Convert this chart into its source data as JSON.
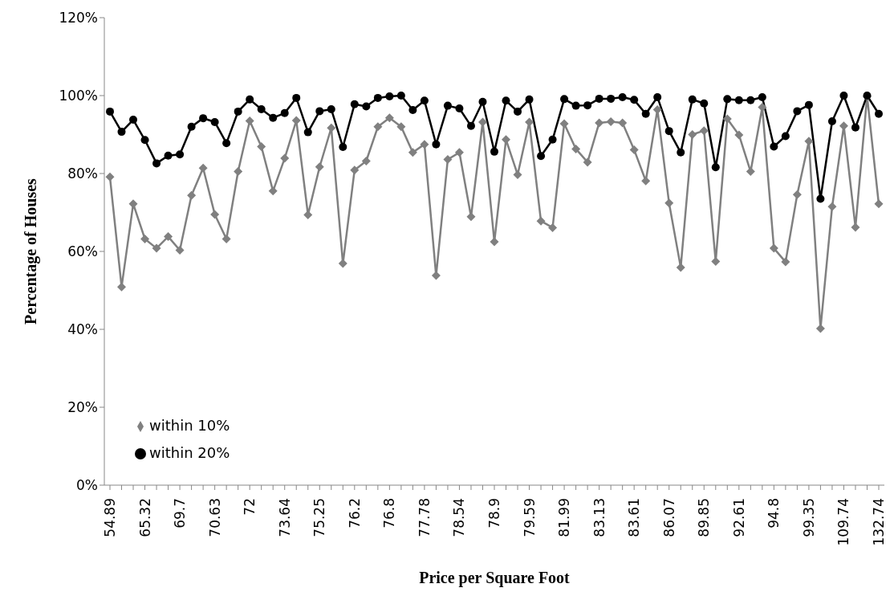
{
  "chart_data": {
    "type": "line",
    "xlabel": "Price per Square Foot",
    "ylabel": "Percentage of Houses",
    "categories": [
      "54.89",
      null,
      null,
      "65.32",
      null,
      null,
      "69.7",
      null,
      null,
      "70.63",
      null,
      null,
      "72",
      null,
      null,
      "73.64",
      null,
      null,
      "75.25",
      null,
      null,
      "76.2",
      null,
      null,
      "76.8",
      null,
      null,
      "77.78",
      null,
      null,
      "78.54",
      null,
      null,
      "78.9",
      null,
      null,
      "79.59",
      null,
      null,
      "81.99",
      null,
      null,
      "83.13",
      null,
      null,
      "83.61",
      null,
      null,
      "86.07",
      null,
      null,
      "89.85",
      null,
      null,
      "92.61",
      null,
      null,
      "94.8",
      null,
      null,
      "99.35",
      null,
      null,
      "109.74",
      null,
      null,
      "132.74"
    ],
    "series": [
      {
        "name": "within 10%",
        "color": "#808080",
        "marker": "diamond",
        "values": [
          79.1,
          50.9,
          72.2,
          63.2,
          60.8,
          63.8,
          60.3,
          74.4,
          81.4,
          69.5,
          63.2,
          80.5,
          93.5,
          86.9,
          75.5,
          83.9,
          93.6,
          69.4,
          81.7,
          91.7,
          56.9,
          80.9,
          83.2,
          92.0,
          94.3,
          92.0,
          85.4,
          87.5,
          53.8,
          83.6,
          85.4,
          68.9,
          93.2,
          62.5,
          88.7,
          79.7,
          93.2,
          67.8,
          66.1,
          92.8,
          86.3,
          82.9,
          93.0,
          93.3,
          93.0,
          86.1,
          78.1,
          96.4,
          72.4,
          55.9,
          90.0,
          91.0,
          57.4,
          94.0,
          89.9,
          80.5,
          97.0,
          60.8,
          57.3,
          74.6,
          88.3,
          40.2,
          71.5,
          92.2,
          66.2,
          99.8,
          72.2
        ]
      },
      {
        "name": "within 20%",
        "color": "#000000",
        "marker": "circle",
        "values": [
          95.9,
          90.7,
          93.8,
          88.6,
          82.6,
          84.6,
          84.9,
          92.0,
          94.2,
          93.2,
          87.8,
          95.9,
          99.0,
          96.5,
          94.3,
          95.5,
          99.4,
          90.6,
          96.0,
          96.5,
          86.8,
          97.8,
          97.2,
          99.4,
          99.8,
          100.0,
          96.3,
          98.7,
          87.5,
          97.4,
          96.7,
          92.2,
          98.4,
          85.6,
          98.7,
          95.9,
          99.0,
          84.5,
          88.7,
          99.1,
          97.4,
          97.5,
          99.2,
          99.2,
          99.6,
          98.9,
          95.3,
          99.6,
          90.9,
          85.4,
          99.0,
          98.0,
          81.6,
          99.1,
          98.8,
          98.8,
          99.6,
          86.9,
          89.6,
          96.0,
          97.6,
          73.5,
          93.4,
          100.0,
          91.8,
          100.0,
          95.3
        ]
      }
    ],
    "ylim": [
      0,
      120
    ],
    "yticks": [
      {
        "value": 0,
        "label": "0%"
      },
      {
        "value": 20,
        "label": "20%"
      },
      {
        "value": 40,
        "label": "40%"
      },
      {
        "value": 60,
        "label": "60%"
      },
      {
        "value": 80,
        "label": "80%"
      },
      {
        "value": 100,
        "label": "100%"
      },
      {
        "value": 120,
        "label": "120%"
      }
    ],
    "grid": false,
    "legend": "bottom left",
    "line_style": "solid"
  }
}
